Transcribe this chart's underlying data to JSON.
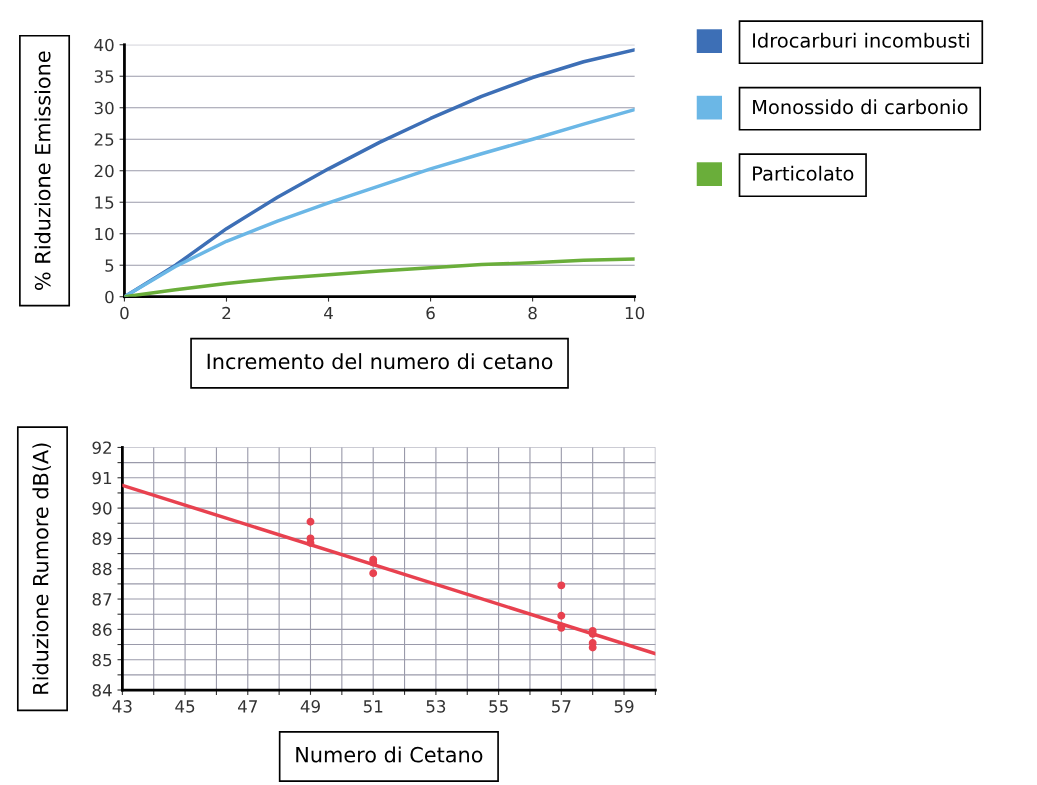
{
  "chart_data": [
    {
      "type": "line",
      "ylabel": "% Riduzione Emissione",
      "xlabel": "Incremento del numero di cetano",
      "x": [
        0,
        1,
        2,
        3,
        4,
        5,
        6,
        7,
        8,
        9,
        10
      ],
      "series": [
        {
          "name": "Idrocarburi incombusti",
          "color": "#3d6fb6",
          "values": [
            0,
            5,
            10.8,
            15.8,
            20.3,
            24.5,
            28.3,
            31.8,
            34.8,
            37.3,
            39.2
          ]
        },
        {
          "name": "Monossido di carbonio",
          "color": "#6bb7e6",
          "values": [
            0,
            4.8,
            8.8,
            12,
            14.9,
            17.6,
            20.3,
            22.7,
            25,
            27.4,
            29.7
          ]
        },
        {
          "name": "Particolato",
          "color": "#6aae3a",
          "values": [
            0,
            1.1,
            2.1,
            2.9,
            3.5,
            4.1,
            4.6,
            5.1,
            5.4,
            5.8,
            6.0
          ]
        }
      ],
      "xlim": [
        0,
        10
      ],
      "xticks": [
        0,
        2,
        4,
        6,
        8,
        10
      ],
      "ylim": [
        0,
        40
      ],
      "yticks": [
        0,
        5,
        10,
        15,
        20,
        25,
        30,
        35,
        40
      ],
      "grid": "y",
      "legend": "right",
      "line_style": "solid"
    },
    {
      "type": "scatter",
      "ylabel": "Riduzione Rumore dB(A)",
      "xlabel": "Numero di Cetano",
      "series": [
        {
          "type": "scatter",
          "marker": "circle",
          "color": "#e8414f",
          "x": [
            49,
            49,
            49,
            51,
            51,
            51,
            57,
            57,
            57,
            57,
            58,
            58,
            58,
            58
          ],
          "values": [
            89.55,
            89.0,
            88.85,
            88.3,
            88.2,
            87.85,
            87.45,
            86.45,
            86.1,
            86.05,
            85.95,
            85.85,
            85.55,
            85.4
          ]
        },
        {
          "type": "line",
          "marker": "none",
          "color": "#e8414f",
          "x": [
            43,
            60
          ],
          "values": [
            90.75,
            85.2
          ]
        }
      ],
      "xlim": [
        43,
        60
      ],
      "xticks": [
        43,
        {
          "value": 44,
          "label": null
        },
        45,
        {
          "value": 46,
          "label": null
        },
        47,
        {
          "value": 48,
          "label": null
        },
        49,
        {
          "value": 50,
          "label": null
        },
        51,
        {
          "value": 52,
          "label": null
        },
        53,
        {
          "value": 54,
          "label": null
        },
        55,
        {
          "value": 56,
          "label": null
        },
        57,
        {
          "value": 58,
          "label": null
        },
        59,
        {
          "value": 60,
          "label": null
        }
      ],
      "ylim": [
        84,
        92
      ],
      "yticks": [
        84,
        {
          "value": 84.5,
          "label": null
        },
        85,
        {
          "value": 85.5,
          "label": null
        },
        86,
        {
          "value": 86.5,
          "label": null
        },
        87,
        {
          "value": 87.5,
          "label": null
        },
        88,
        {
          "value": 88.5,
          "label": null
        },
        89,
        {
          "value": 89.5,
          "label": null
        },
        90,
        {
          "value": 90.5,
          "label": null
        },
        91,
        {
          "value": 91.5,
          "label": null
        },
        92
      ],
      "grid": true
    }
  ]
}
